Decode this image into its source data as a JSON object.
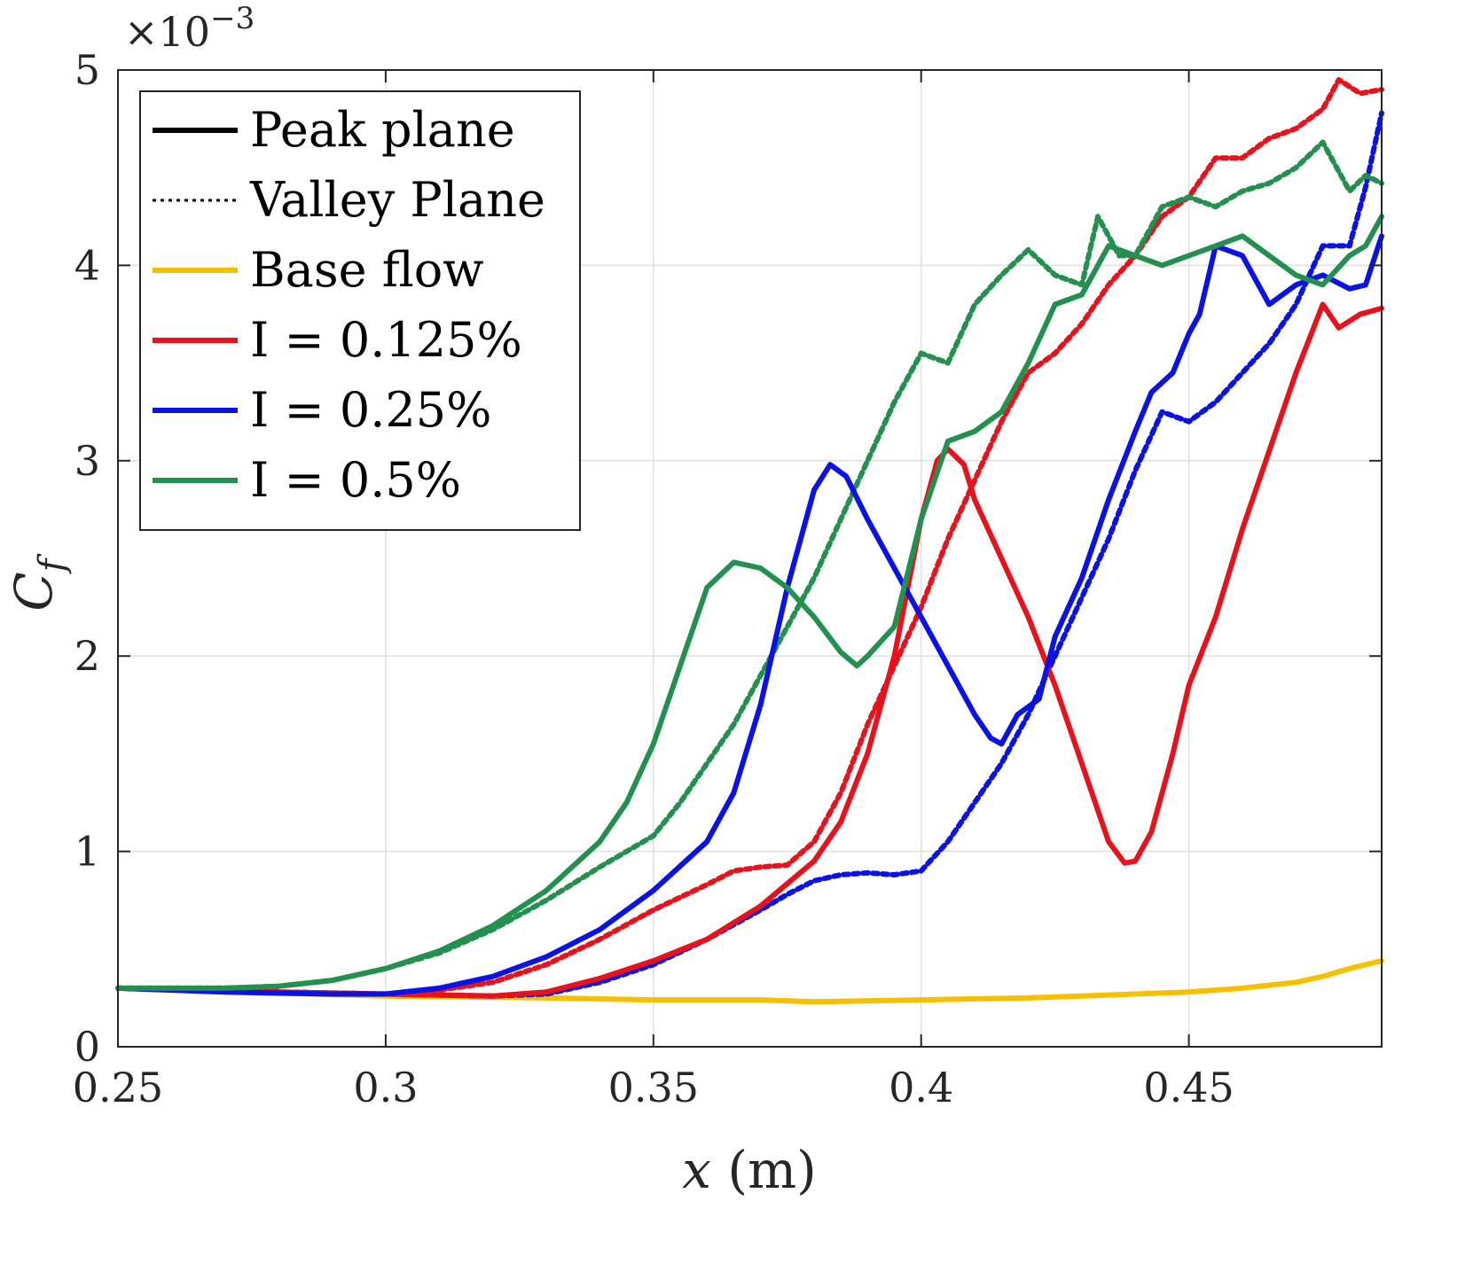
{
  "chart_data": {
    "type": "line",
    "xlabel": "x (m)",
    "ylabel": "C_f",
    "y_multiplier_label": "×10^−3",
    "xlim": [
      0.25,
      0.486
    ],
    "ylim": [
      0,
      5
    ],
    "x_ticks": [
      0.25,
      0.3,
      0.35,
      0.4,
      0.45
    ],
    "x_tick_labels": [
      "0.25",
      "0.3",
      "0.35",
      "0.4",
      "0.45"
    ],
    "y_ticks": [
      0,
      1,
      2,
      3,
      4,
      5
    ],
    "y_tick_labels": [
      "0",
      "1",
      "2",
      "3",
      "4",
      "5"
    ],
    "grid": true,
    "legend_position": "top-left",
    "legend": [
      {
        "label": "Peak plane",
        "color": "#000000",
        "style": "solid"
      },
      {
        "label": "Valley Plane",
        "color": "#000000",
        "style": "dotted"
      },
      {
        "label": "Base flow",
        "color": "#f5c000",
        "style": "solid"
      },
      {
        "label": "I = 0.125%",
        "color": "#e8121c",
        "style": "solid"
      },
      {
        "label": "I = 0.25%",
        "color": "#0a12e6",
        "style": "solid"
      },
      {
        "label": "I = 0.5%",
        "color": "#249050",
        "style": "solid"
      }
    ],
    "series": [
      {
        "name": "Base flow",
        "plane": "peak",
        "color": "#f5c000",
        "style": "solid",
        "points": [
          [
            0.25,
            0.3
          ],
          [
            0.27,
            0.28
          ],
          [
            0.3,
            0.26
          ],
          [
            0.33,
            0.25
          ],
          [
            0.35,
            0.24
          ],
          [
            0.37,
            0.24
          ],
          [
            0.38,
            0.23
          ],
          [
            0.4,
            0.24
          ],
          [
            0.42,
            0.25
          ],
          [
            0.43,
            0.26
          ],
          [
            0.44,
            0.27
          ],
          [
            0.45,
            0.28
          ],
          [
            0.46,
            0.3
          ],
          [
            0.47,
            0.33
          ],
          [
            0.475,
            0.36
          ],
          [
            0.48,
            0.4
          ],
          [
            0.486,
            0.44
          ]
        ]
      },
      {
        "name": "I = 0.125%",
        "plane": "valley",
        "color": "#e8121c",
        "style": "dotted",
        "points": [
          [
            0.25,
            0.3
          ],
          [
            0.28,
            0.28
          ],
          [
            0.3,
            0.27
          ],
          [
            0.31,
            0.29
          ],
          [
            0.32,
            0.33
          ],
          [
            0.33,
            0.42
          ],
          [
            0.34,
            0.55
          ],
          [
            0.35,
            0.7
          ],
          [
            0.36,
            0.83
          ],
          [
            0.365,
            0.9
          ],
          [
            0.37,
            0.92
          ],
          [
            0.375,
            0.93
          ],
          [
            0.38,
            1.05
          ],
          [
            0.385,
            1.3
          ],
          [
            0.39,
            1.65
          ],
          [
            0.395,
            1.95
          ],
          [
            0.4,
            2.25
          ],
          [
            0.405,
            2.6
          ],
          [
            0.41,
            2.9
          ],
          [
            0.415,
            3.2
          ],
          [
            0.42,
            3.45
          ],
          [
            0.425,
            3.55
          ],
          [
            0.43,
            3.7
          ],
          [
            0.435,
            3.9
          ],
          [
            0.44,
            4.05
          ],
          [
            0.445,
            4.25
          ],
          [
            0.45,
            4.35
          ],
          [
            0.455,
            4.55
          ],
          [
            0.46,
            4.55
          ],
          [
            0.465,
            4.65
          ],
          [
            0.47,
            4.7
          ],
          [
            0.475,
            4.8
          ],
          [
            0.478,
            4.95
          ],
          [
            0.482,
            4.88
          ],
          [
            0.486,
            4.9
          ]
        ]
      },
      {
        "name": "I = 0.25%",
        "plane": "valley",
        "color": "#0a12e6",
        "style": "dotted",
        "points": [
          [
            0.25,
            0.3
          ],
          [
            0.28,
            0.28
          ],
          [
            0.3,
            0.27
          ],
          [
            0.32,
            0.26
          ],
          [
            0.33,
            0.27
          ],
          [
            0.34,
            0.33
          ],
          [
            0.35,
            0.42
          ],
          [
            0.36,
            0.55
          ],
          [
            0.37,
            0.7
          ],
          [
            0.375,
            0.78
          ],
          [
            0.38,
            0.85
          ],
          [
            0.385,
            0.88
          ],
          [
            0.39,
            0.89
          ],
          [
            0.395,
            0.88
          ],
          [
            0.4,
            0.9
          ],
          [
            0.405,
            1.05
          ],
          [
            0.41,
            1.25
          ],
          [
            0.415,
            1.45
          ],
          [
            0.42,
            1.7
          ],
          [
            0.425,
            2.0
          ],
          [
            0.43,
            2.3
          ],
          [
            0.435,
            2.6
          ],
          [
            0.44,
            2.95
          ],
          [
            0.445,
            3.25
          ],
          [
            0.45,
            3.2
          ],
          [
            0.455,
            3.3
          ],
          [
            0.46,
            3.45
          ],
          [
            0.465,
            3.6
          ],
          [
            0.47,
            3.8
          ],
          [
            0.475,
            4.1
          ],
          [
            0.48,
            4.1
          ],
          [
            0.483,
            4.4
          ],
          [
            0.486,
            4.78
          ]
        ]
      },
      {
        "name": "I = 0.5%",
        "plane": "valley",
        "color": "#249050",
        "style": "dotted",
        "points": [
          [
            0.25,
            0.3
          ],
          [
            0.27,
            0.3
          ],
          [
            0.28,
            0.31
          ],
          [
            0.29,
            0.34
          ],
          [
            0.3,
            0.4
          ],
          [
            0.31,
            0.48
          ],
          [
            0.32,
            0.6
          ],
          [
            0.33,
            0.75
          ],
          [
            0.34,
            0.92
          ],
          [
            0.35,
            1.08
          ],
          [
            0.355,
            1.25
          ],
          [
            0.36,
            1.45
          ],
          [
            0.365,
            1.65
          ],
          [
            0.37,
            1.9
          ],
          [
            0.375,
            2.15
          ],
          [
            0.38,
            2.4
          ],
          [
            0.385,
            2.7
          ],
          [
            0.39,
            3.0
          ],
          [
            0.395,
            3.3
          ],
          [
            0.4,
            3.55
          ],
          [
            0.405,
            3.5
          ],
          [
            0.41,
            3.8
          ],
          [
            0.415,
            3.95
          ],
          [
            0.42,
            4.08
          ],
          [
            0.425,
            3.95
          ],
          [
            0.43,
            3.9
          ],
          [
            0.433,
            4.25
          ],
          [
            0.437,
            4.05
          ],
          [
            0.44,
            4.05
          ],
          [
            0.445,
            4.3
          ],
          [
            0.45,
            4.35
          ],
          [
            0.455,
            4.3
          ],
          [
            0.46,
            4.38
          ],
          [
            0.465,
            4.42
          ],
          [
            0.47,
            4.5
          ],
          [
            0.475,
            4.63
          ],
          [
            0.48,
            4.38
          ],
          [
            0.483,
            4.46
          ],
          [
            0.486,
            4.42
          ]
        ]
      },
      {
        "name": "I = 0.125%",
        "plane": "peak",
        "color": "#e8121c",
        "style": "solid",
        "points": [
          [
            0.25,
            0.3
          ],
          [
            0.28,
            0.28
          ],
          [
            0.3,
            0.27
          ],
          [
            0.32,
            0.26
          ],
          [
            0.33,
            0.28
          ],
          [
            0.34,
            0.35
          ],
          [
            0.35,
            0.44
          ],
          [
            0.36,
            0.55
          ],
          [
            0.37,
            0.72
          ],
          [
            0.38,
            0.95
          ],
          [
            0.385,
            1.15
          ],
          [
            0.39,
            1.5
          ],
          [
            0.395,
            2.0
          ],
          [
            0.4,
            2.7
          ],
          [
            0.403,
            3.0
          ],
          [
            0.405,
            3.06
          ],
          [
            0.408,
            2.98
          ],
          [
            0.41,
            2.8
          ],
          [
            0.415,
            2.5
          ],
          [
            0.42,
            2.2
          ],
          [
            0.425,
            1.85
          ],
          [
            0.43,
            1.45
          ],
          [
            0.435,
            1.05
          ],
          [
            0.438,
            0.94
          ],
          [
            0.44,
            0.95
          ],
          [
            0.443,
            1.1
          ],
          [
            0.447,
            1.5
          ],
          [
            0.45,
            1.85
          ],
          [
            0.455,
            2.2
          ],
          [
            0.46,
            2.65
          ],
          [
            0.465,
            3.05
          ],
          [
            0.47,
            3.45
          ],
          [
            0.475,
            3.8
          ],
          [
            0.478,
            3.68
          ],
          [
            0.482,
            3.75
          ],
          [
            0.486,
            3.78
          ]
        ]
      },
      {
        "name": "I = 0.25%",
        "plane": "peak",
        "color": "#0a12e6",
        "style": "solid",
        "points": [
          [
            0.25,
            0.3
          ],
          [
            0.27,
            0.28
          ],
          [
            0.29,
            0.27
          ],
          [
            0.3,
            0.27
          ],
          [
            0.31,
            0.3
          ],
          [
            0.32,
            0.36
          ],
          [
            0.33,
            0.46
          ],
          [
            0.34,
            0.6
          ],
          [
            0.35,
            0.8
          ],
          [
            0.36,
            1.05
          ],
          [
            0.365,
            1.3
          ],
          [
            0.37,
            1.75
          ],
          [
            0.375,
            2.35
          ],
          [
            0.38,
            2.85
          ],
          [
            0.383,
            2.98
          ],
          [
            0.386,
            2.92
          ],
          [
            0.39,
            2.7
          ],
          [
            0.395,
            2.45
          ],
          [
            0.4,
            2.2
          ],
          [
            0.405,
            1.95
          ],
          [
            0.41,
            1.7
          ],
          [
            0.413,
            1.58
          ],
          [
            0.415,
            1.55
          ],
          [
            0.418,
            1.7
          ],
          [
            0.422,
            1.78
          ],
          [
            0.425,
            2.1
          ],
          [
            0.43,
            2.4
          ],
          [
            0.435,
            2.8
          ],
          [
            0.44,
            3.15
          ],
          [
            0.443,
            3.35
          ],
          [
            0.447,
            3.45
          ],
          [
            0.45,
            3.65
          ],
          [
            0.452,
            3.75
          ],
          [
            0.455,
            4.1
          ],
          [
            0.46,
            4.05
          ],
          [
            0.465,
            3.8
          ],
          [
            0.47,
            3.9
          ],
          [
            0.475,
            3.95
          ],
          [
            0.48,
            3.88
          ],
          [
            0.483,
            3.9
          ],
          [
            0.486,
            4.15
          ]
        ]
      },
      {
        "name": "I = 0.5%",
        "plane": "peak",
        "color": "#249050",
        "style": "solid",
        "points": [
          [
            0.25,
            0.3
          ],
          [
            0.27,
            0.3
          ],
          [
            0.28,
            0.31
          ],
          [
            0.29,
            0.34
          ],
          [
            0.3,
            0.4
          ],
          [
            0.31,
            0.49
          ],
          [
            0.32,
            0.62
          ],
          [
            0.33,
            0.8
          ],
          [
            0.34,
            1.05
          ],
          [
            0.345,
            1.25
          ],
          [
            0.35,
            1.55
          ],
          [
            0.355,
            1.95
          ],
          [
            0.36,
            2.35
          ],
          [
            0.365,
            2.48
          ],
          [
            0.37,
            2.45
          ],
          [
            0.375,
            2.35
          ],
          [
            0.38,
            2.2
          ],
          [
            0.385,
            2.02
          ],
          [
            0.388,
            1.95
          ],
          [
            0.39,
            2.0
          ],
          [
            0.395,
            2.15
          ],
          [
            0.4,
            2.7
          ],
          [
            0.405,
            3.1
          ],
          [
            0.41,
            3.15
          ],
          [
            0.415,
            3.25
          ],
          [
            0.42,
            3.5
          ],
          [
            0.425,
            3.8
          ],
          [
            0.43,
            3.85
          ],
          [
            0.435,
            4.1
          ],
          [
            0.44,
            4.05
          ],
          [
            0.445,
            4.0
          ],
          [
            0.45,
            4.05
          ],
          [
            0.455,
            4.1
          ],
          [
            0.46,
            4.15
          ],
          [
            0.465,
            4.05
          ],
          [
            0.47,
            3.95
          ],
          [
            0.475,
            3.9
          ],
          [
            0.48,
            4.05
          ],
          [
            0.483,
            4.1
          ],
          [
            0.486,
            4.25
          ]
        ]
      }
    ]
  }
}
